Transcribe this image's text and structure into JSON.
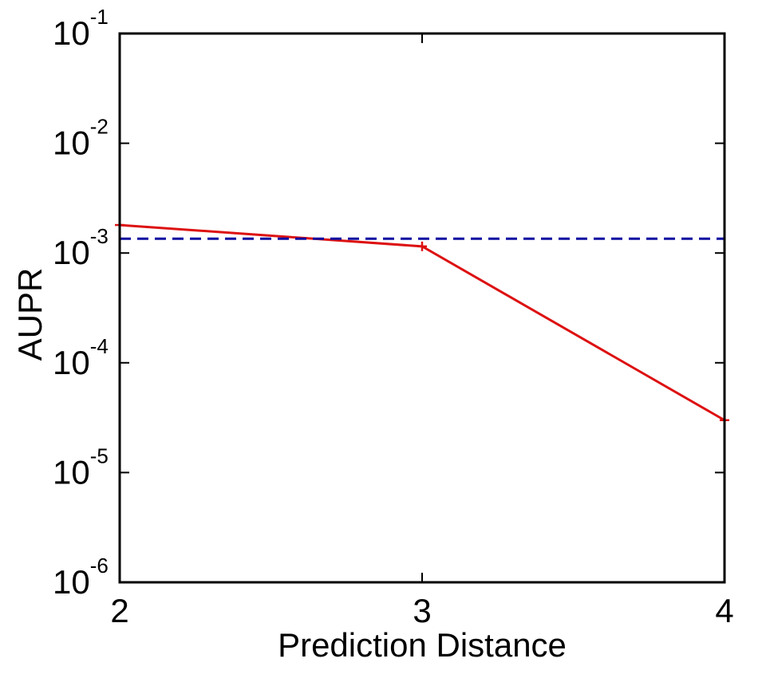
{
  "chart_data": {
    "type": "line",
    "title": "",
    "xlabel": "Prediction Distance",
    "ylabel": "AUPR",
    "yscale": "log",
    "xlim": [
      2,
      4
    ],
    "ylim": [
      1e-06,
      0.1
    ],
    "x_ticks": [
      2,
      3,
      4
    ],
    "x_tick_labels": [
      "2",
      "3",
      "4"
    ],
    "y_ticks": [
      1e-06,
      1e-05,
      0.0001,
      0.001,
      0.01,
      0.1
    ],
    "y_tick_labels": [
      {
        "base": "10",
        "exp": "-6"
      },
      {
        "base": "10",
        "exp": "-5"
      },
      {
        "base": "10",
        "exp": "-4"
      },
      {
        "base": "10",
        "exp": "-3"
      },
      {
        "base": "10",
        "exp": "-2"
      },
      {
        "base": "10",
        "exp": "-1"
      }
    ],
    "grid": false,
    "series": [
      {
        "x": [
          2,
          3,
          4
        ],
        "values": [
          0.0018,
          0.00115,
          3e-05
        ],
        "color": "#dd1111",
        "style": "solid",
        "marker": "+"
      },
      {
        "x": [
          2,
          4
        ],
        "values": [
          0.00135,
          0.00135
        ],
        "color": "#0a0aa0",
        "style": "dashed",
        "marker": "none"
      }
    ]
  }
}
